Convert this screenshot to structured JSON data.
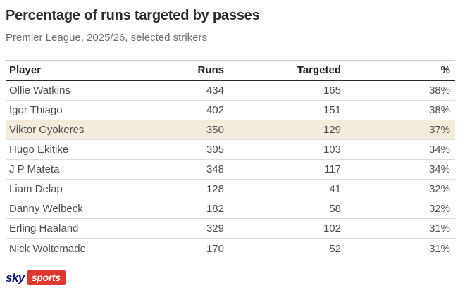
{
  "header": {
    "title": "Percentage of runs targeted by passes",
    "subtitle": "Premier League, 2025/26, selected strikers"
  },
  "table": {
    "columns": [
      "Player",
      "Runs",
      "Targeted",
      "%"
    ],
    "rows": [
      {
        "player": "Ollie Watkins",
        "runs": "434",
        "targeted": "165",
        "pct": "38%",
        "highlight": false
      },
      {
        "player": "Igor Thiago",
        "runs": "402",
        "targeted": "151",
        "pct": "38%",
        "highlight": false
      },
      {
        "player": "Viktor Gyokeres",
        "runs": "350",
        "targeted": "129",
        "pct": "37%",
        "highlight": true
      },
      {
        "player": "Hugo Ekitike",
        "runs": "305",
        "targeted": "103",
        "pct": "34%",
        "highlight": false
      },
      {
        "player": "J P Mateta",
        "runs": "348",
        "targeted": "117",
        "pct": "34%",
        "highlight": false
      },
      {
        "player": "Liam Delap",
        "runs": "128",
        "targeted": "41",
        "pct": "32%",
        "highlight": false
      },
      {
        "player": "Danny Welbeck",
        "runs": "182",
        "targeted": "58",
        "pct": "32%",
        "highlight": false
      },
      {
        "player": "Erling Haaland",
        "runs": "329",
        "targeted": "102",
        "pct": "31%",
        "highlight": false
      },
      {
        "player": "Nick Woltemade",
        "runs": "170",
        "targeted": "52",
        "pct": "31%",
        "highlight": false
      }
    ]
  },
  "branding": {
    "sky": "sky",
    "sports": "sports"
  },
  "colors": {
    "highlight_row": "#f3ecdc",
    "header_rule": "#2b2b2b",
    "row_divider": "#dcdcdc",
    "sky_logo_blue": "#10147e",
    "sports_badge_red": "#e0362f"
  },
  "chart_data": {
    "type": "table",
    "title": "Percentage of runs targeted by passes",
    "subtitle": "Premier League, 2025/26, selected strikers",
    "columns": [
      "Player",
      "Runs",
      "Targeted",
      "%"
    ],
    "rows": [
      [
        "Ollie Watkins",
        434,
        165,
        "38%"
      ],
      [
        "Igor Thiago",
        402,
        151,
        "38%"
      ],
      [
        "Viktor Gyokeres",
        350,
        129,
        "37%"
      ],
      [
        "Hugo Ekitike",
        305,
        103,
        "34%"
      ],
      [
        "J P Mateta",
        348,
        117,
        "34%"
      ],
      [
        "Liam Delap",
        128,
        41,
        "32%"
      ],
      [
        "Danny Welbeck",
        182,
        58,
        "32%"
      ],
      [
        "Erling Haaland",
        329,
        102,
        "31%"
      ],
      [
        "Nick Woltemade",
        170,
        52,
        "31%"
      ]
    ],
    "highlighted_row": "Viktor Gyokeres",
    "source": "Sky Sports"
  }
}
